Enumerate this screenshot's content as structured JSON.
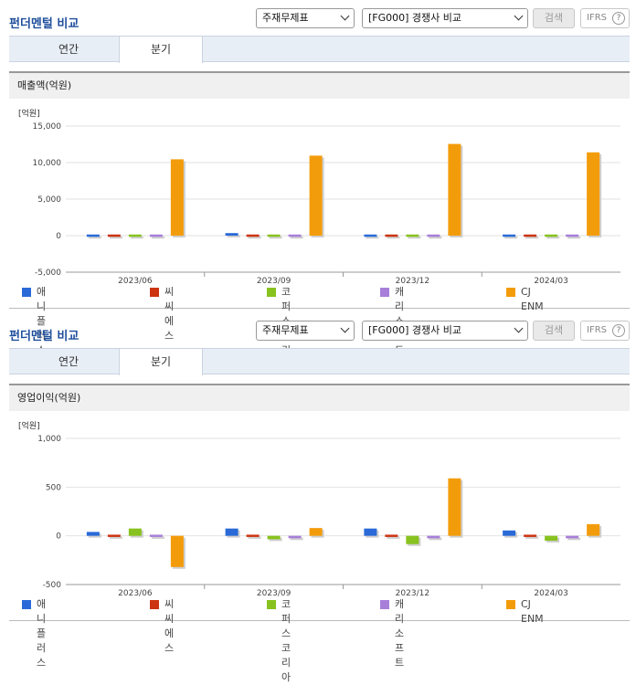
{
  "sections": [
    {
      "title": "펀더멘털 비교",
      "select_item": "주재무제표",
      "select_compare": "[FG000] 경쟁사 비교",
      "search_label": "검색",
      "ifrs_label": "IFRS",
      "ifrs_help": "?",
      "tabs": [
        "연간",
        "분기"
      ],
      "active_tab": "분기",
      "chart_header": "매출액(억원)"
    },
    {
      "title": "펀더멘털 비교",
      "select_item": "주재무제표",
      "select_compare": "[FG000] 경쟁사 비교",
      "search_label": "검색",
      "ifrs_label": "IFRS",
      "ifrs_help": "?",
      "tabs": [
        "연간",
        "분기"
      ],
      "active_tab": "분기",
      "chart_header": "영업이익(억원)"
    }
  ],
  "colors": {
    "애니플러스": "#2a6ad8",
    "씨씨에스": "#cc3311",
    "코퍼스코리아": "#88c21e",
    "캐리소프트": "#a77fd9",
    "CJ ENM": "#f39c0b"
  },
  "chart_data": [
    {
      "type": "bar",
      "unit_label": "[억원]",
      "categories": [
        "2023/06",
        "2023/09",
        "2023/12",
        "2024/03"
      ],
      "ylim": [
        -5000,
        15000
      ],
      "yticks": [
        -5000,
        0,
        5000,
        10000,
        15000
      ],
      "ytick_labels": [
        "-5,000",
        "0",
        "5,000",
        "10,000",
        "15,000"
      ],
      "series": [
        {
          "name": "애니플러스",
          "values": [
            300,
            350,
            250,
            270
          ]
        },
        {
          "name": "씨씨에스",
          "values": [
            10,
            10,
            5,
            5
          ]
        },
        {
          "name": "코퍼스코리아",
          "values": [
            250,
            -200,
            0,
            -250
          ]
        },
        {
          "name": "캐리소프트",
          "values": [
            5,
            5,
            5,
            5
          ]
        },
        {
          "name": "CJ ENM",
          "values": [
            10450,
            10950,
            12550,
            11400
          ]
        }
      ]
    },
    {
      "type": "bar",
      "unit_label": "[억원]",
      "categories": [
        "2023/06",
        "2023/09",
        "2023/12",
        "2024/03"
      ],
      "ylim": [
        -500,
        1000
      ],
      "yticks": [
        -500,
        0,
        500,
        1000
      ],
      "ytick_labels": [
        "-500",
        "0",
        "500",
        "1,000"
      ],
      "series": [
        {
          "name": "애니플러스",
          "values": [
            40,
            75,
            75,
            55
          ]
        },
        {
          "name": "씨씨에스",
          "values": [
            -15,
            0,
            0,
            0
          ]
        },
        {
          "name": "코퍼스코리아",
          "values": [
            75,
            -35,
            -85,
            -50
          ]
        },
        {
          "name": "캐리소프트",
          "values": [
            0,
            -25,
            -25,
            -25
          ]
        },
        {
          "name": "CJ ENM",
          "values": [
            -320,
            80,
            590,
            120
          ]
        }
      ]
    }
  ]
}
